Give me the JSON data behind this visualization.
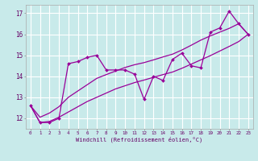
{
  "bg_color": "#c8eaea",
  "grid_color": "#ffffff",
  "line_color": "#990099",
  "x_data": [
    0,
    1,
    2,
    3,
    4,
    5,
    6,
    7,
    8,
    9,
    10,
    11,
    12,
    13,
    14,
    15,
    16,
    17,
    18,
    19,
    20,
    21,
    22,
    23
  ],
  "y_main": [
    12.6,
    11.8,
    11.8,
    12.0,
    14.6,
    14.7,
    14.9,
    15.0,
    14.3,
    14.3,
    14.3,
    14.1,
    12.9,
    14.0,
    13.8,
    14.8,
    15.1,
    14.5,
    14.4,
    16.1,
    16.3,
    17.1,
    16.5,
    16.0
  ],
  "y_low": [
    12.6,
    11.8,
    11.85,
    12.05,
    12.3,
    12.55,
    12.8,
    13.0,
    13.2,
    13.4,
    13.55,
    13.7,
    13.82,
    13.95,
    14.08,
    14.2,
    14.38,
    14.58,
    14.78,
    14.98,
    15.2,
    15.42,
    15.65,
    16.0
  ],
  "y_high": [
    12.6,
    12.05,
    12.25,
    12.55,
    13.0,
    13.3,
    13.6,
    13.9,
    14.08,
    14.25,
    14.42,
    14.55,
    14.65,
    14.78,
    14.92,
    15.05,
    15.25,
    15.48,
    15.72,
    15.92,
    16.1,
    16.28,
    16.5,
    16.0
  ],
  "ylim": [
    11.5,
    17.4
  ],
  "xlim": [
    -0.5,
    23.5
  ],
  "yticks": [
    12,
    13,
    14,
    15,
    16,
    17
  ],
  "xticks": [
    0,
    1,
    2,
    3,
    4,
    5,
    6,
    7,
    8,
    9,
    10,
    11,
    12,
    13,
    14,
    15,
    16,
    17,
    18,
    19,
    20,
    21,
    22,
    23
  ],
  "xlabel": "Windchill (Refroidissement éolien,°C)"
}
